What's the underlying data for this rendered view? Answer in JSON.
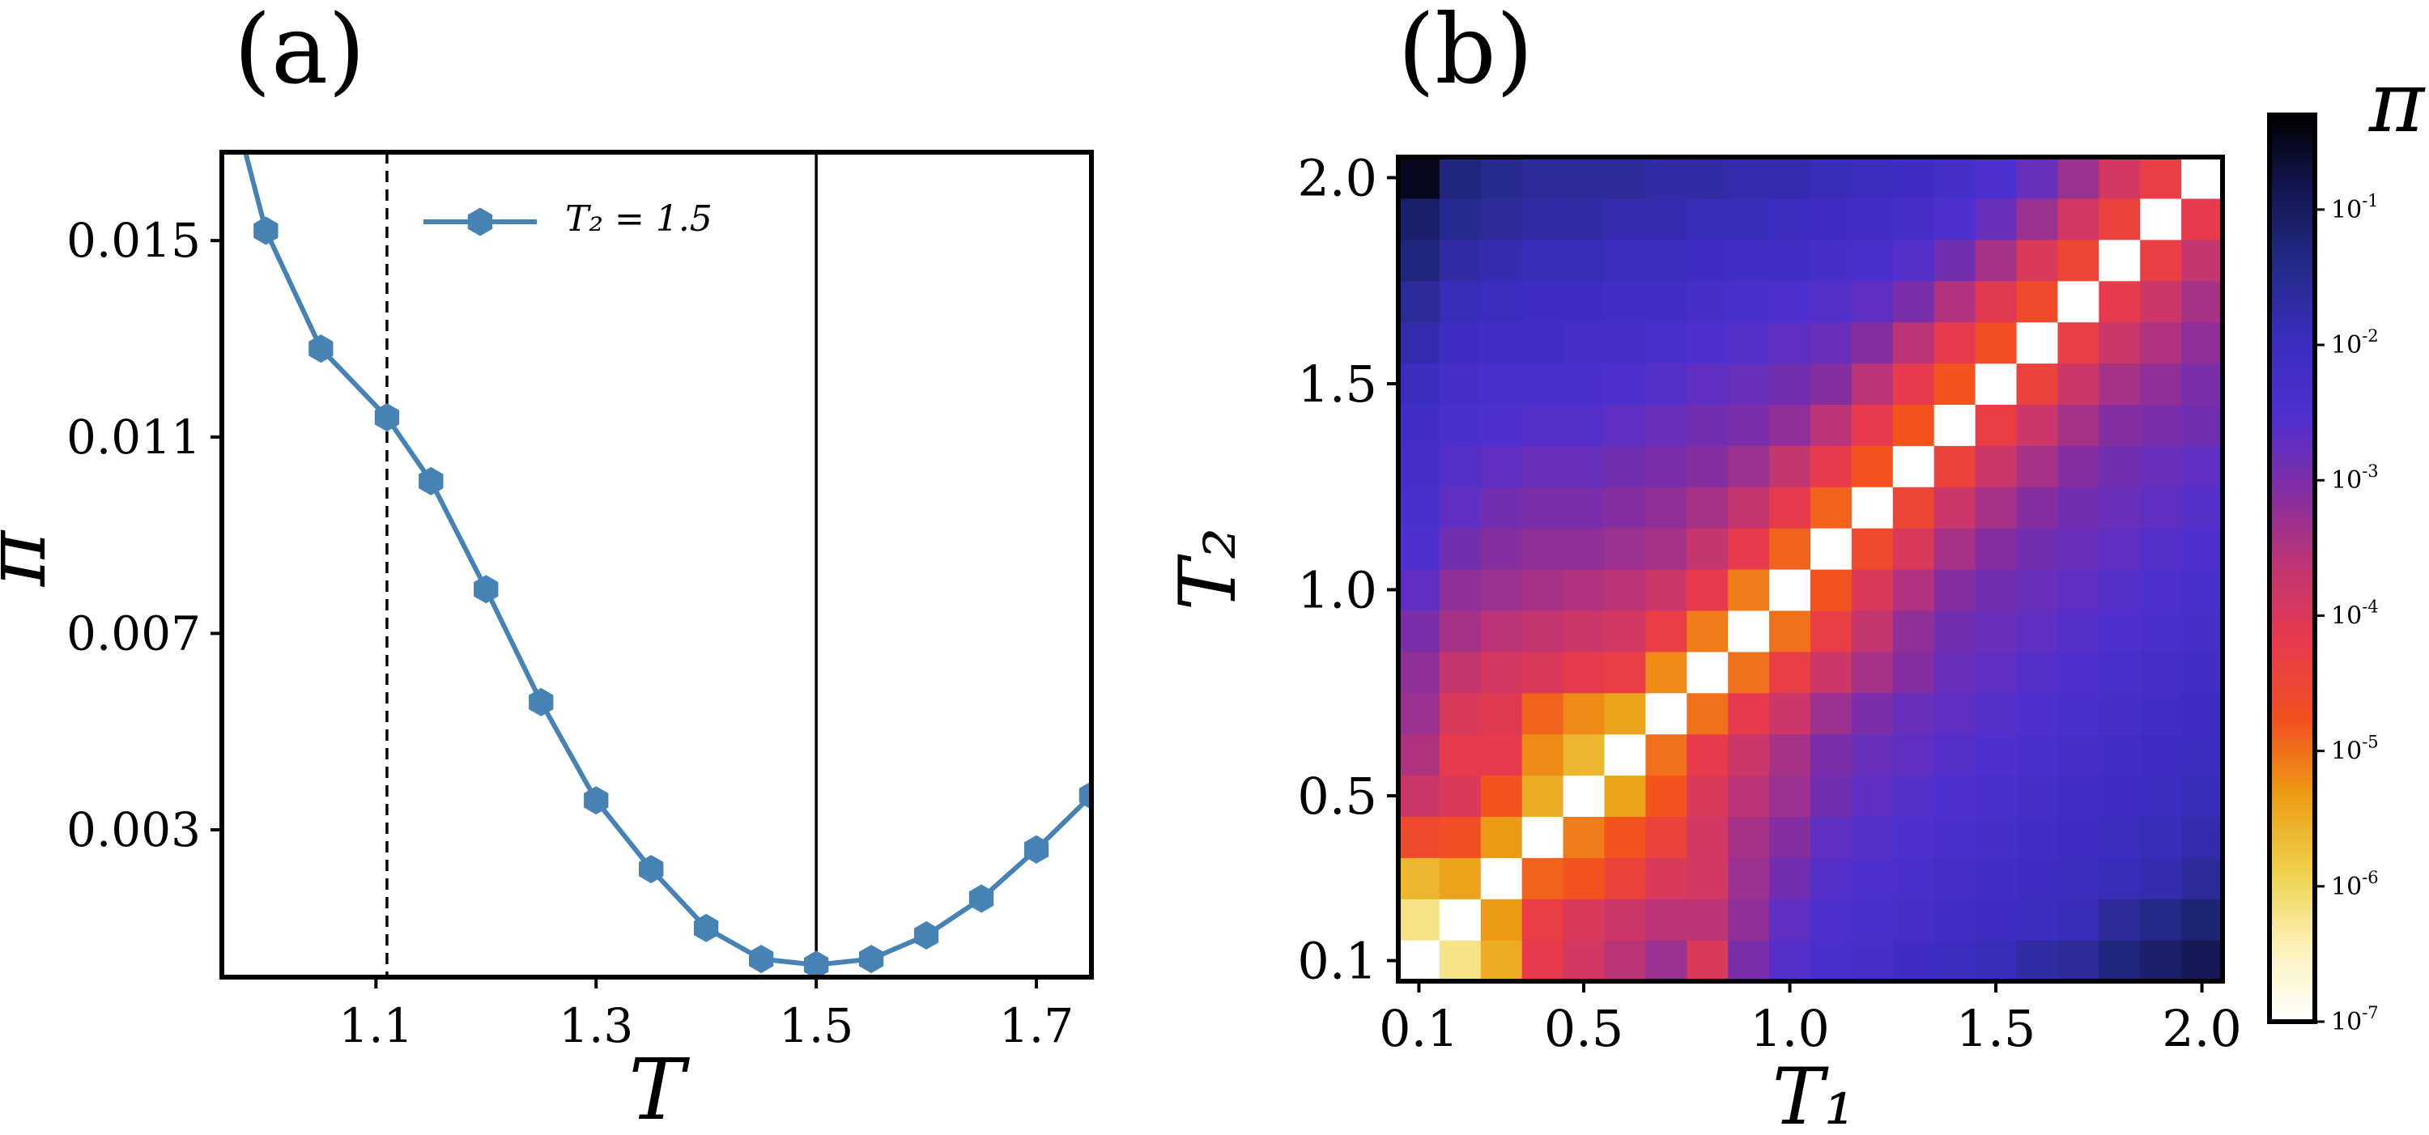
{
  "chart_data": [
    {
      "type": "line",
      "panel_label": "(a)",
      "xlabel": "T",
      "ylabel": "π",
      "xlim": [
        0.96,
        1.75
      ],
      "ylim": [
        0.0,
        0.0168
      ],
      "xticks": [
        1.1,
        1.3,
        1.5,
        1.7
      ],
      "xtick_labels": [
        "1.1",
        "1.3",
        "1.5",
        "1.7"
      ],
      "yticks": [
        0.003,
        0.007,
        0.011,
        0.015
      ],
      "ytick_labels": [
        "0.003",
        "0.007",
        "0.011",
        "0.015"
      ],
      "grid": false,
      "legend": "top-left",
      "series": [
        {
          "name": "T₂ = 1.5",
          "color": "#4682b4",
          "marker": "hexagon",
          "x": [
            0.95,
            1.0,
            1.05,
            1.11,
            1.15,
            1.2,
            1.25,
            1.3,
            1.35,
            1.4,
            1.45,
            1.5,
            1.55,
            1.6,
            1.65,
            1.7,
            1.75
          ],
          "y": [
            0.0195,
            0.0152,
            0.0128,
            0.0114,
            0.0101,
            0.0079,
            0.0056,
            0.0036,
            0.0022,
            0.001,
            0.00037,
            0.00025,
            0.00037,
            0.00085,
            0.0016,
            0.0026,
            0.0037
          ]
        }
      ],
      "vlines": [
        {
          "x": 1.11,
          "style": "dashed",
          "color": "#000000"
        },
        {
          "x": 1.5,
          "style": "solid",
          "color": "#000000"
        }
      ]
    },
    {
      "type": "heatmap",
      "panel_label": "(b)",
      "xlabel": "T₁",
      "ylabel": "T₂",
      "x_range": [
        0.1,
        2.0
      ],
      "y_range": [
        0.1,
        2.0
      ],
      "grid_size": 20,
      "xticks": [
        0.1,
        0.5,
        1.0,
        1.5,
        2.0
      ],
      "xtick_labels": [
        "0.1",
        "0.5",
        "1.0",
        "1.5",
        "2.0"
      ],
      "yticks": [
        0.1,
        0.5,
        1.0,
        1.5,
        2.0
      ],
      "ytick_labels": [
        "0.1",
        "0.5",
        "1.0",
        "1.5",
        "2.0"
      ],
      "colorbar": {
        "label": "π",
        "scale": "log",
        "range": [
          1e-07,
          0.5
        ],
        "tick_exponents": [
          -7,
          -6,
          -5,
          -4,
          -3,
          -2,
          -1
        ],
        "tick_labels": [
          "10-7",
          "10-6",
          "10-5",
          "10-4",
          "10-3",
          "10-2",
          "10-1"
        ],
        "colormap": [
          "#ffffff",
          "#fcf2b8",
          "#efd04a",
          "#ec9c15",
          "#f3501f",
          "#e83b4c",
          "#c13572",
          "#842ea1",
          "#4f2fd0",
          "#3a2dbf",
          "#232a88",
          "#131752",
          "#000000"
        ]
      },
      "values_log10": [
        [
          -7.0,
          -6.2,
          -5.5,
          -4.2,
          -3.9,
          -3.6,
          -3.3,
          -4.0,
          -3.0,
          -2.6,
          -2.4,
          -2.3,
          -2.1,
          -2.0,
          -1.9,
          -1.7,
          -1.6,
          -1.3,
          -1.1,
          -0.9
        ],
        [
          -6.2,
          -7.0,
          -5.3,
          -4.3,
          -4.0,
          -3.8,
          -3.6,
          -3.6,
          -3.2,
          -2.7,
          -2.5,
          -2.4,
          -2.3,
          -2.2,
          -2.1,
          -2.0,
          -1.9,
          -1.6,
          -1.4,
          -1.2
        ],
        [
          -5.6,
          -5.4,
          -7.0,
          -4.9,
          -4.8,
          -4.4,
          -4.0,
          -3.9,
          -3.3,
          -2.9,
          -2.6,
          -2.5,
          -2.4,
          -2.3,
          -2.2,
          -2.1,
          -2.0,
          -1.9,
          -1.8,
          -1.6
        ],
        [
          -4.6,
          -4.7,
          -5.3,
          -7.0,
          -5.1,
          -4.8,
          -4.4,
          -3.9,
          -3.4,
          -3.1,
          -2.7,
          -2.6,
          -2.5,
          -2.4,
          -2.3,
          -2.2,
          -2.1,
          -2.0,
          -1.9,
          -1.8
        ],
        [
          -3.8,
          -4.0,
          -4.8,
          -5.5,
          -7.0,
          -5.4,
          -4.8,
          -4.0,
          -3.6,
          -3.3,
          -2.9,
          -2.7,
          -2.6,
          -2.5,
          -2.4,
          -2.3,
          -2.2,
          -2.1,
          -2.0,
          -1.9
        ],
        [
          -3.5,
          -4.2,
          -4.2,
          -5.2,
          -5.6,
          -7.0,
          -5.0,
          -4.2,
          -3.8,
          -3.4,
          -3.0,
          -2.8,
          -2.7,
          -2.6,
          -2.5,
          -2.4,
          -2.3,
          -2.2,
          -2.1,
          -2.0
        ],
        [
          -3.3,
          -4.0,
          -4.1,
          -4.9,
          -5.2,
          -5.4,
          -7.0,
          -5.0,
          -4.2,
          -3.8,
          -3.3,
          -3.0,
          -2.8,
          -2.7,
          -2.6,
          -2.5,
          -2.4,
          -2.3,
          -2.2,
          -2.1
        ],
        [
          -3.2,
          -3.7,
          -3.9,
          -4.0,
          -4.2,
          -4.3,
          -5.2,
          -7.0,
          -5.0,
          -4.3,
          -3.8,
          -3.4,
          -3.1,
          -2.8,
          -2.7,
          -2.6,
          -2.5,
          -2.4,
          -2.3,
          -2.2
        ],
        [
          -3.0,
          -3.4,
          -3.6,
          -3.7,
          -3.8,
          -3.9,
          -4.3,
          -5.1,
          -7.0,
          -5.0,
          -4.3,
          -3.7,
          -3.2,
          -2.9,
          -2.8,
          -2.7,
          -2.6,
          -2.5,
          -2.4,
          -2.3
        ],
        [
          -2.7,
          -3.2,
          -3.3,
          -3.4,
          -3.5,
          -3.6,
          -3.8,
          -4.2,
          -5.1,
          -7.0,
          -4.8,
          -4.0,
          -3.5,
          -3.1,
          -2.9,
          -2.8,
          -2.7,
          -2.6,
          -2.5,
          -2.4
        ],
        [
          -2.5,
          -2.9,
          -3.1,
          -3.2,
          -3.2,
          -3.3,
          -3.4,
          -3.7,
          -4.2,
          -4.9,
          -7.0,
          -4.6,
          -4.0,
          -3.4,
          -3.1,
          -2.9,
          -2.8,
          -2.7,
          -2.6,
          -2.5
        ],
        [
          -2.4,
          -2.7,
          -2.9,
          -3.0,
          -3.0,
          -3.1,
          -3.2,
          -3.4,
          -3.7,
          -4.2,
          -4.9,
          -7.0,
          -4.5,
          -3.8,
          -3.4,
          -3.1,
          -2.9,
          -2.8,
          -2.7,
          -2.6
        ],
        [
          -2.3,
          -2.6,
          -2.7,
          -2.8,
          -2.8,
          -2.9,
          -3.0,
          -3.1,
          -3.3,
          -3.7,
          -4.2,
          -4.8,
          -7.0,
          -4.4,
          -3.8,
          -3.4,
          -3.1,
          -2.9,
          -2.8,
          -2.7
        ],
        [
          -2.2,
          -2.4,
          -2.5,
          -2.6,
          -2.6,
          -2.7,
          -2.8,
          -2.9,
          -3.0,
          -3.2,
          -3.6,
          -4.2,
          -4.8,
          -7.0,
          -4.3,
          -3.8,
          -3.4,
          -3.1,
          -3.0,
          -2.9
        ],
        [
          -2.0,
          -2.3,
          -2.4,
          -2.4,
          -2.4,
          -2.5,
          -2.6,
          -2.7,
          -2.8,
          -2.9,
          -3.1,
          -3.6,
          -4.2,
          -4.8,
          -7.0,
          -4.4,
          -3.8,
          -3.4,
          -3.2,
          -3.0
        ],
        [
          -1.8,
          -2.1,
          -2.2,
          -2.2,
          -2.3,
          -2.3,
          -2.4,
          -2.5,
          -2.6,
          -2.7,
          -2.8,
          -3.1,
          -3.6,
          -4.2,
          -4.7,
          -7.0,
          -4.3,
          -3.8,
          -3.5,
          -3.2
        ],
        [
          -1.6,
          -1.9,
          -2.0,
          -2.1,
          -2.1,
          -2.2,
          -2.2,
          -2.3,
          -2.4,
          -2.5,
          -2.6,
          -2.7,
          -3.0,
          -3.5,
          -4.1,
          -4.6,
          -7.0,
          -4.2,
          -3.8,
          -3.4
        ],
        [
          -1.3,
          -1.7,
          -1.8,
          -1.9,
          -1.9,
          -2.0,
          -2.0,
          -2.1,
          -2.2,
          -2.2,
          -2.3,
          -2.4,
          -2.6,
          -2.9,
          -3.4,
          -4.0,
          -4.5,
          -7.0,
          -4.3,
          -3.7
        ],
        [
          -1.1,
          -1.5,
          -1.6,
          -1.7,
          -1.7,
          -1.8,
          -1.8,
          -1.9,
          -1.9,
          -2.0,
          -2.1,
          -2.2,
          -2.3,
          -2.5,
          -2.8,
          -3.3,
          -3.9,
          -4.4,
          -7.0,
          -4.2
        ],
        [
          -0.5,
          -1.3,
          -1.5,
          -1.6,
          -1.6,
          -1.6,
          -1.7,
          -1.7,
          -1.8,
          -1.8,
          -1.9,
          -2.0,
          -2.1,
          -2.3,
          -2.5,
          -2.8,
          -3.3,
          -3.9,
          -4.3,
          -7.0
        ]
      ]
    }
  ]
}
